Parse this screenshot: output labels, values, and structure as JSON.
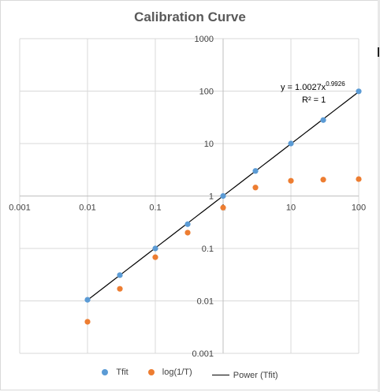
{
  "chart_data": {
    "type": "scatter",
    "title": "Calibration Curve",
    "xscale": "log",
    "yscale": "log",
    "xlim": [
      0.001,
      100
    ],
    "ylim": [
      0.001,
      1000
    ],
    "x_ticks": [
      "0.001",
      "0.01",
      "0.1",
      "1",
      "10",
      "100"
    ],
    "y_ticks": [
      "0.001",
      "0.01",
      "0.1",
      "1",
      "10",
      "100",
      "1000"
    ],
    "grid": true,
    "legend_position": "bottom",
    "series": [
      {
        "name": "Tfit",
        "color": "#5b9bd5",
        "x": [
          0.01,
          0.03,
          0.1,
          0.3,
          1,
          3,
          10,
          30,
          100
        ],
        "y": [
          0.0105,
          0.031,
          0.1,
          0.29,
          1.0,
          3.0,
          10.0,
          28.0,
          99.0
        ]
      },
      {
        "name": "log(1/T)",
        "color": "#ed7d31",
        "x": [
          0.01,
          0.03,
          0.1,
          0.3,
          1,
          3,
          10,
          30,
          100
        ],
        "y": [
          0.004,
          0.017,
          0.068,
          0.2,
          0.6,
          1.45,
          1.95,
          2.05,
          2.1
        ]
      }
    ],
    "trendline": {
      "name": "Power (Tfit)",
      "color": "#000000",
      "coefficient": 1.0027,
      "exponent": 0.9926,
      "x_range": [
        0.01,
        100
      ],
      "equation_text": "y = 1.0027x",
      "equation_exponent": "0.9926",
      "r2_text": "R² = 1"
    }
  }
}
